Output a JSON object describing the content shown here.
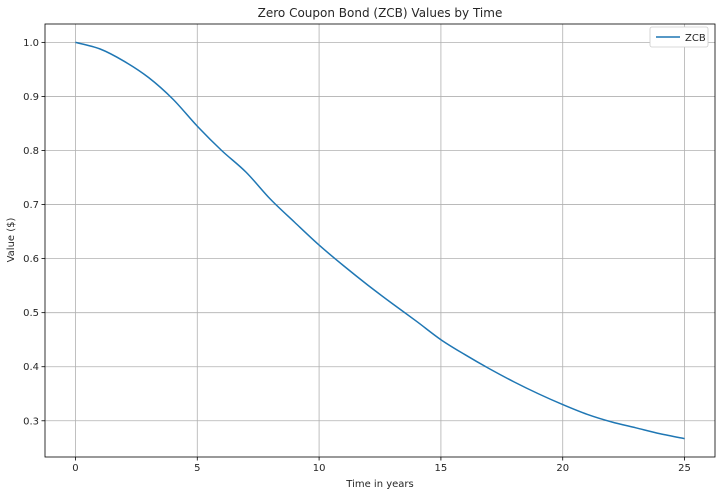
{
  "chart_data": {
    "type": "line",
    "title": "Zero Coupon Bond (ZCB) Values by Time",
    "xlabel": "Time in years",
    "ylabel": "Value ($)",
    "xlim": [
      -1.25,
      26.25
    ],
    "ylim": [
      0.233,
      1.034
    ],
    "xticks": [
      0,
      5,
      10,
      15,
      20,
      25
    ],
    "yticks": [
      0.3,
      0.4,
      0.5,
      0.6,
      0.7,
      0.8,
      0.9,
      1.0
    ],
    "xtick_labels": [
      "0",
      "5",
      "10",
      "15",
      "20",
      "25"
    ],
    "ytick_labels": [
      "0.3",
      "0.4",
      "0.5",
      "0.6",
      "0.7",
      "0.8",
      "0.9",
      "1.0"
    ],
    "grid": true,
    "legend": {
      "position": "top-right",
      "entries": [
        "ZCB"
      ]
    },
    "series": [
      {
        "name": "ZCB",
        "color": "#1f77b4",
        "x": [
          0,
          1,
          2,
          3,
          4,
          5,
          6,
          7,
          8,
          9,
          10,
          11,
          12,
          13,
          14,
          15,
          16,
          17,
          18,
          19,
          20,
          21,
          22,
          23,
          24,
          25
        ],
        "y": [
          1.0,
          0.988,
          0.965,
          0.935,
          0.895,
          0.845,
          0.8,
          0.76,
          0.71,
          0.667,
          0.625,
          0.587,
          0.551,
          0.517,
          0.484,
          0.45,
          0.422,
          0.396,
          0.372,
          0.35,
          0.33,
          0.312,
          0.298,
          0.287,
          0.276,
          0.267
        ]
      }
    ]
  }
}
